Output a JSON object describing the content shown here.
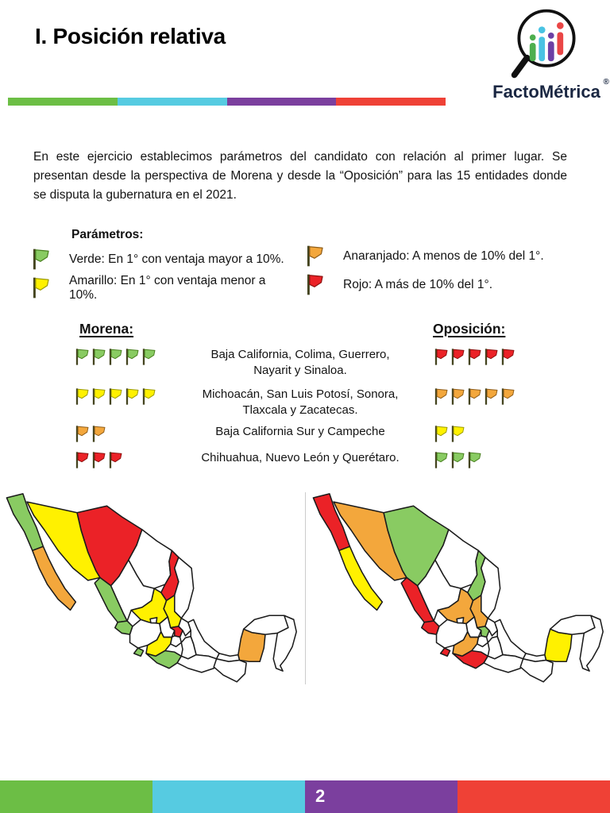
{
  "header": {
    "title": "I. Posición relativa",
    "brand": "FactoMétrica",
    "registered": "®",
    "logo_bar_colors": [
      "#4DAF4E",
      "#49C3E3",
      "#6C3FA4",
      "#EA4646"
    ]
  },
  "bar_colors": [
    "#6CBE45",
    "#56CBE1",
    "#7B3F9E",
    "#EF4136"
  ],
  "intro": "En este ejercicio establecimos parámetros del candidato con relación al primer lugar. Se presentan desde la perspectiva de Morena y desde la “Oposición” para las 15 entidades donde se disputa la gubernatura en el 2021.",
  "parameters": {
    "heading": "Parámetros:",
    "items": [
      {
        "flag": "verde",
        "text": "Verde: En 1° con ventaja mayor a 10%."
      },
      {
        "flag": "amarillo",
        "text": "Amarillo: En 1° con ventaja menor a 10%."
      },
      {
        "flag": "anaranjado",
        "text": "Anaranjado: A menos de 10% del 1°."
      },
      {
        "flag": "rojo",
        "text": "Rojo: A más de 10% del 1°."
      }
    ]
  },
  "comparison": {
    "left_heading": "Morena:",
    "right_heading": "Oposición:",
    "rows": [
      {
        "morena_flags": {
          "color": "verde",
          "count": 5
        },
        "states": "Baja California, Colima, Guerrero,  Nayarit y Sinaloa.",
        "oposicion_flags": {
          "color": "rojo",
          "count": 5
        }
      },
      {
        "morena_flags": {
          "color": "amarillo",
          "count": 5
        },
        "states": "Michoacán, San Luis Potosí, Sonora, Tlaxcala y Zacatecas.",
        "oposicion_flags": {
          "color": "anaranjado",
          "count": 5
        }
      },
      {
        "morena_flags": {
          "color": "anaranjado",
          "count": 2
        },
        "states": "Baja California Sur y  Campeche",
        "oposicion_flags": {
          "color": "amarillo",
          "count": 2
        }
      },
      {
        "morena_flags": {
          "color": "rojo",
          "count": 3
        },
        "states": "Chihuahua, Nuevo León y Querétaro.",
        "oposicion_flags": {
          "color": "verde",
          "count": 3
        }
      }
    ]
  },
  "maps": {
    "state_colors": {
      "morena": {
        "bc": "verde",
        "bcs": "anaranjado",
        "son": "amarillo",
        "chih": "rojo",
        "sin": "verde",
        "nl": "rojo",
        "zac": "amarillo",
        "slp": "amarillo",
        "nay": "verde",
        "qro": "rojo",
        "mich": "amarillo",
        "col": "verde",
        "tlx": "amarillo",
        "gro": "verde",
        "camp": "anaranjado"
      },
      "oposicion": {
        "bc": "rojo",
        "bcs": "amarillo",
        "son": "anaranjado",
        "chih": "verde",
        "sin": "rojo",
        "nl": "verde",
        "zac": "anaranjado",
        "slp": "anaranjado",
        "nay": "rojo",
        "qro": "verde",
        "mich": "anaranjado",
        "col": "rojo",
        "tlx": "anaranjado",
        "gro": "rojo",
        "camp": "amarillo"
      }
    }
  },
  "colors": {
    "verde": "#89CB62",
    "amarillo": "#FFF100",
    "anaranjado": "#F3A73C",
    "rojo": "#EB2227",
    "blanco": "#FFFFFF"
  },
  "footer": {
    "page": "2"
  }
}
